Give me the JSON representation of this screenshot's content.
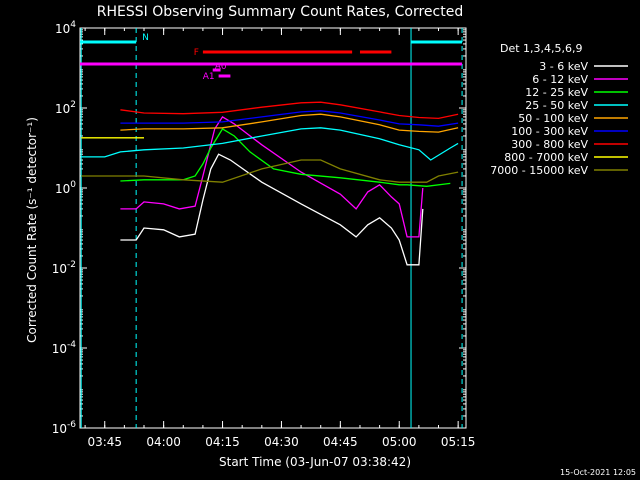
{
  "title": "RHESSI Observing Summary Count Rates, Corrected",
  "footer_date": "15-Oct-2021 12:05",
  "chart_data": {
    "type": "line",
    "title": "RHESSI Observing Summary Count Rates, Corrected",
    "xlabel": "Start Time (03-Jun-07 03:38:42)",
    "ylabel": "Corrected Count Rate (s⁻¹ detector⁻¹)",
    "yscale": "log",
    "xlim": [
      "03:38:42",
      "05:17:00"
    ],
    "ylim": [
      1e-06,
      10000.0
    ],
    "x_ticks": [
      "03:45",
      "04:00",
      "04:15",
      "04:30",
      "04:45",
      "05:00",
      "05:15"
    ],
    "y_ticks": [
      {
        "base": "10",
        "exp": "-6",
        "value": -6
      },
      {
        "base": "10",
        "exp": "-4",
        "value": -4
      },
      {
        "base": "10",
        "exp": "-2",
        "value": -2
      },
      {
        "base": "10",
        "exp": "0",
        "value": 0
      },
      {
        "base": "10",
        "exp": "2",
        "value": 2
      },
      {
        "base": "10",
        "exp": "4",
        "value": 4
      }
    ],
    "legend_title": "Det 1,3,4,5,6,9",
    "legend_position": "right",
    "series": [
      {
        "name": "3 - 6 keV",
        "color": "#ffffff",
        "points": [
          [
            "03:49",
            0.05
          ],
          [
            "03:53",
            0.05
          ],
          [
            "03:55",
            0.1
          ],
          [
            "04:00",
            0.09
          ],
          [
            "04:04",
            0.06
          ],
          [
            "04:08",
            0.07
          ],
          [
            "04:10",
            0.5
          ],
          [
            "04:12",
            3
          ],
          [
            "04:14",
            7
          ],
          [
            "04:17",
            5
          ],
          [
            "04:25",
            1.4
          ],
          [
            "04:35",
            0.4
          ],
          [
            "04:45",
            0.12
          ],
          [
            "04:49",
            0.06
          ],
          [
            "04:52",
            0.12
          ],
          [
            "04:55",
            0.18
          ],
          [
            "04:58",
            0.1
          ],
          [
            "05:00",
            0.05
          ],
          [
            "05:02",
            0.012
          ],
          [
            "05:05",
            0.012
          ],
          [
            "05:06",
            0.3
          ]
        ]
      },
      {
        "name": "6 - 12 keV",
        "color": "#ff00ff",
        "points": [
          [
            "03:49",
            0.3
          ],
          [
            "03:53",
            0.3
          ],
          [
            "03:55",
            0.45
          ],
          [
            "04:00",
            0.4
          ],
          [
            "04:04",
            0.3
          ],
          [
            "04:08",
            0.35
          ],
          [
            "04:10",
            2
          ],
          [
            "04:13",
            30
          ],
          [
            "04:15",
            60
          ],
          [
            "04:18",
            40
          ],
          [
            "04:25",
            12
          ],
          [
            "04:35",
            2.5
          ],
          [
            "04:45",
            0.7
          ],
          [
            "04:49",
            0.3
          ],
          [
            "04:52",
            0.8
          ],
          [
            "04:55",
            1.2
          ],
          [
            "04:58",
            0.6
          ],
          [
            "05:00",
            0.4
          ],
          [
            "05:02",
            0.06
          ],
          [
            "05:05",
            0.06
          ],
          [
            "05:06",
            1.0
          ]
        ]
      },
      {
        "name": "12 - 25 keV",
        "color": "#00ff00",
        "points": [
          [
            "03:49",
            1.5
          ],
          [
            "03:55",
            1.6
          ],
          [
            "04:05",
            1.6
          ],
          [
            "04:08",
            2.0
          ],
          [
            "04:10",
            4
          ],
          [
            "04:12",
            10
          ],
          [
            "04:15",
            30
          ],
          [
            "04:18",
            20
          ],
          [
            "04:22",
            8
          ],
          [
            "04:28",
            3
          ],
          [
            "04:35",
            2.2
          ],
          [
            "04:45",
            1.8
          ],
          [
            "04:55",
            1.4
          ],
          [
            "05:00",
            1.2
          ],
          [
            "05:02",
            1.2
          ],
          [
            "05:07",
            1.1
          ],
          [
            "05:13",
            1.3
          ]
        ]
      },
      {
        "name": "25 - 50 keV",
        "color": "#00ffff",
        "points": [
          [
            "03:39",
            6
          ],
          [
            "03:45",
            6
          ],
          [
            "03:49",
            8
          ],
          [
            "03:55",
            9
          ],
          [
            "04:05",
            10
          ],
          [
            "04:15",
            13
          ],
          [
            "04:25",
            20
          ],
          [
            "04:35",
            30
          ],
          [
            "04:40",
            32
          ],
          [
            "04:45",
            28
          ],
          [
            "04:55",
            17
          ],
          [
            "05:00",
            12
          ],
          [
            "05:05",
            9
          ],
          [
            "05:08",
            5
          ],
          [
            "05:13",
            10
          ],
          [
            "05:15",
            13
          ]
        ]
      },
      {
        "name": "50 - 100 keV",
        "color": "#ffa500",
        "points": [
          [
            "03:49",
            28
          ],
          [
            "03:55",
            30
          ],
          [
            "04:05",
            30
          ],
          [
            "04:15",
            32
          ],
          [
            "04:25",
            45
          ],
          [
            "04:35",
            65
          ],
          [
            "04:40",
            70
          ],
          [
            "04:45",
            60
          ],
          [
            "04:55",
            38
          ],
          [
            "05:00",
            28
          ],
          [
            "05:05",
            26
          ],
          [
            "05:10",
            25
          ],
          [
            "05:15",
            32
          ]
        ]
      },
      {
        "name": "100 - 300 keV",
        "color": "#0000ff",
        "points": [
          [
            "03:49",
            42
          ],
          [
            "03:55",
            42
          ],
          [
            "04:05",
            42
          ],
          [
            "04:15",
            45
          ],
          [
            "04:25",
            60
          ],
          [
            "04:35",
            80
          ],
          [
            "04:40",
            85
          ],
          [
            "04:45",
            75
          ],
          [
            "04:55",
            50
          ],
          [
            "05:00",
            40
          ],
          [
            "05:05",
            38
          ],
          [
            "05:10",
            35
          ],
          [
            "05:15",
            42
          ]
        ]
      },
      {
        "name": "300 - 800 keV",
        "color": "#ff0000",
        "points": [
          [
            "03:49",
            90
          ],
          [
            "03:55",
            75
          ],
          [
            "04:05",
            72
          ],
          [
            "04:15",
            78
          ],
          [
            "04:25",
            105
          ],
          [
            "04:35",
            135
          ],
          [
            "04:40",
            140
          ],
          [
            "04:45",
            120
          ],
          [
            "04:55",
            80
          ],
          [
            "05:00",
            65
          ],
          [
            "05:05",
            58
          ],
          [
            "05:10",
            55
          ],
          [
            "05:15",
            70
          ]
        ]
      },
      {
        "name": "800 - 7000 keV",
        "color": "#ffff00",
        "points": [
          [
            "03:39",
            18
          ],
          [
            "03:45",
            18
          ],
          [
            "03:49",
            18
          ],
          [
            "03:55",
            18
          ]
        ]
      },
      {
        "name": "7000 - 15000 keV",
        "color": "#808000",
        "points": [
          [
            "03:39",
            2.0
          ],
          [
            "03:49",
            2.0
          ],
          [
            "03:55",
            2.0
          ],
          [
            "04:05",
            1.6
          ],
          [
            "04:15",
            1.4
          ],
          [
            "04:25",
            3
          ],
          [
            "04:35",
            5
          ],
          [
            "04:40",
            5
          ],
          [
            "04:45",
            3
          ],
          [
            "04:55",
            1.6
          ],
          [
            "05:00",
            1.4
          ],
          [
            "05:07",
            1.4
          ],
          [
            "05:10",
            2
          ],
          [
            "05:15",
            2.5
          ]
        ]
      }
    ],
    "flag_bars": [
      {
        "label": "N",
        "color": "#00ffff",
        "log_y": 3.65,
        "segments": [
          [
            "03:38:42",
            "03:53:00"
          ],
          [
            "05:03:00",
            "05:16:00"
          ]
        ]
      },
      {
        "label": "F",
        "color": "#ff0000",
        "log_y": 3.4,
        "segments": [
          [
            "04:10:00",
            "04:48:00"
          ],
          [
            "04:50:00",
            "04:58:00"
          ]
        ]
      },
      {
        "label": "",
        "color": "#ff00ff",
        "log_y": 3.1,
        "segments": [
          [
            "03:38:42",
            "05:16:00"
          ]
        ]
      },
      {
        "label": "A0",
        "color": "#ff00ff",
        "log_y": 2.95,
        "segments": [
          [
            "04:12:30",
            "04:14:30"
          ]
        ]
      },
      {
        "label": "A1",
        "color": "#ff00ff",
        "log_y": 2.8,
        "segments": [
          [
            "04:14:00",
            "04:17:00"
          ]
        ]
      }
    ],
    "markers": [
      {
        "time": "03:39:00",
        "color": "#00ffff",
        "style": "solid"
      },
      {
        "time": "03:53:00",
        "color": "#00ffff",
        "style": "dashed"
      },
      {
        "time": "05:03:00",
        "color": "#00ffff",
        "style": "solid"
      },
      {
        "time": "05:16:00",
        "color": "#00ffff",
        "style": "dashed"
      }
    ]
  }
}
